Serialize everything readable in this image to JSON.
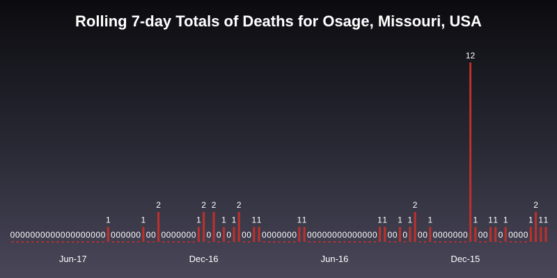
{
  "chart_data": {
    "type": "bar",
    "title": "Rolling 7-day Totals of Deaths for Osage, Missouri, USA",
    "xlabel": "",
    "ylabel": "",
    "ylim": [
      0,
      12
    ],
    "x_order": "newest-left",
    "grid": false,
    "legend": "none",
    "x_tick_labels": [
      {
        "label": "Jun-17",
        "index": 12
      },
      {
        "label": "Dec-16",
        "index": 38
      },
      {
        "label": "Jun-16",
        "index": 64
      },
      {
        "label": "Dec-15",
        "index": 90
      }
    ],
    "values": [
      0,
      0,
      0,
      0,
      0,
      0,
      0,
      0,
      0,
      0,
      0,
      0,
      0,
      0,
      0,
      0,
      0,
      0,
      0,
      1,
      0,
      0,
      0,
      0,
      0,
      0,
      1,
      0,
      0,
      2,
      0,
      0,
      0,
      0,
      0,
      0,
      0,
      1,
      2,
      0,
      2,
      0,
      1,
      0,
      1,
      2,
      0,
      0,
      1,
      1,
      0,
      0,
      0,
      0,
      0,
      0,
      0,
      1,
      1,
      0,
      0,
      0,
      0,
      0,
      0,
      0,
      0,
      0,
      0,
      0,
      0,
      0,
      0,
      1,
      1,
      0,
      0,
      1,
      0,
      1,
      2,
      0,
      0,
      1,
      0,
      0,
      0,
      0,
      0,
      0,
      0,
      12,
      1,
      0,
      0,
      1,
      1,
      0,
      1,
      0,
      0,
      0,
      0,
      1,
      2,
      1,
      1
    ],
    "colors": {
      "bar": "#c0302b",
      "label": "#ffffff"
    }
  }
}
